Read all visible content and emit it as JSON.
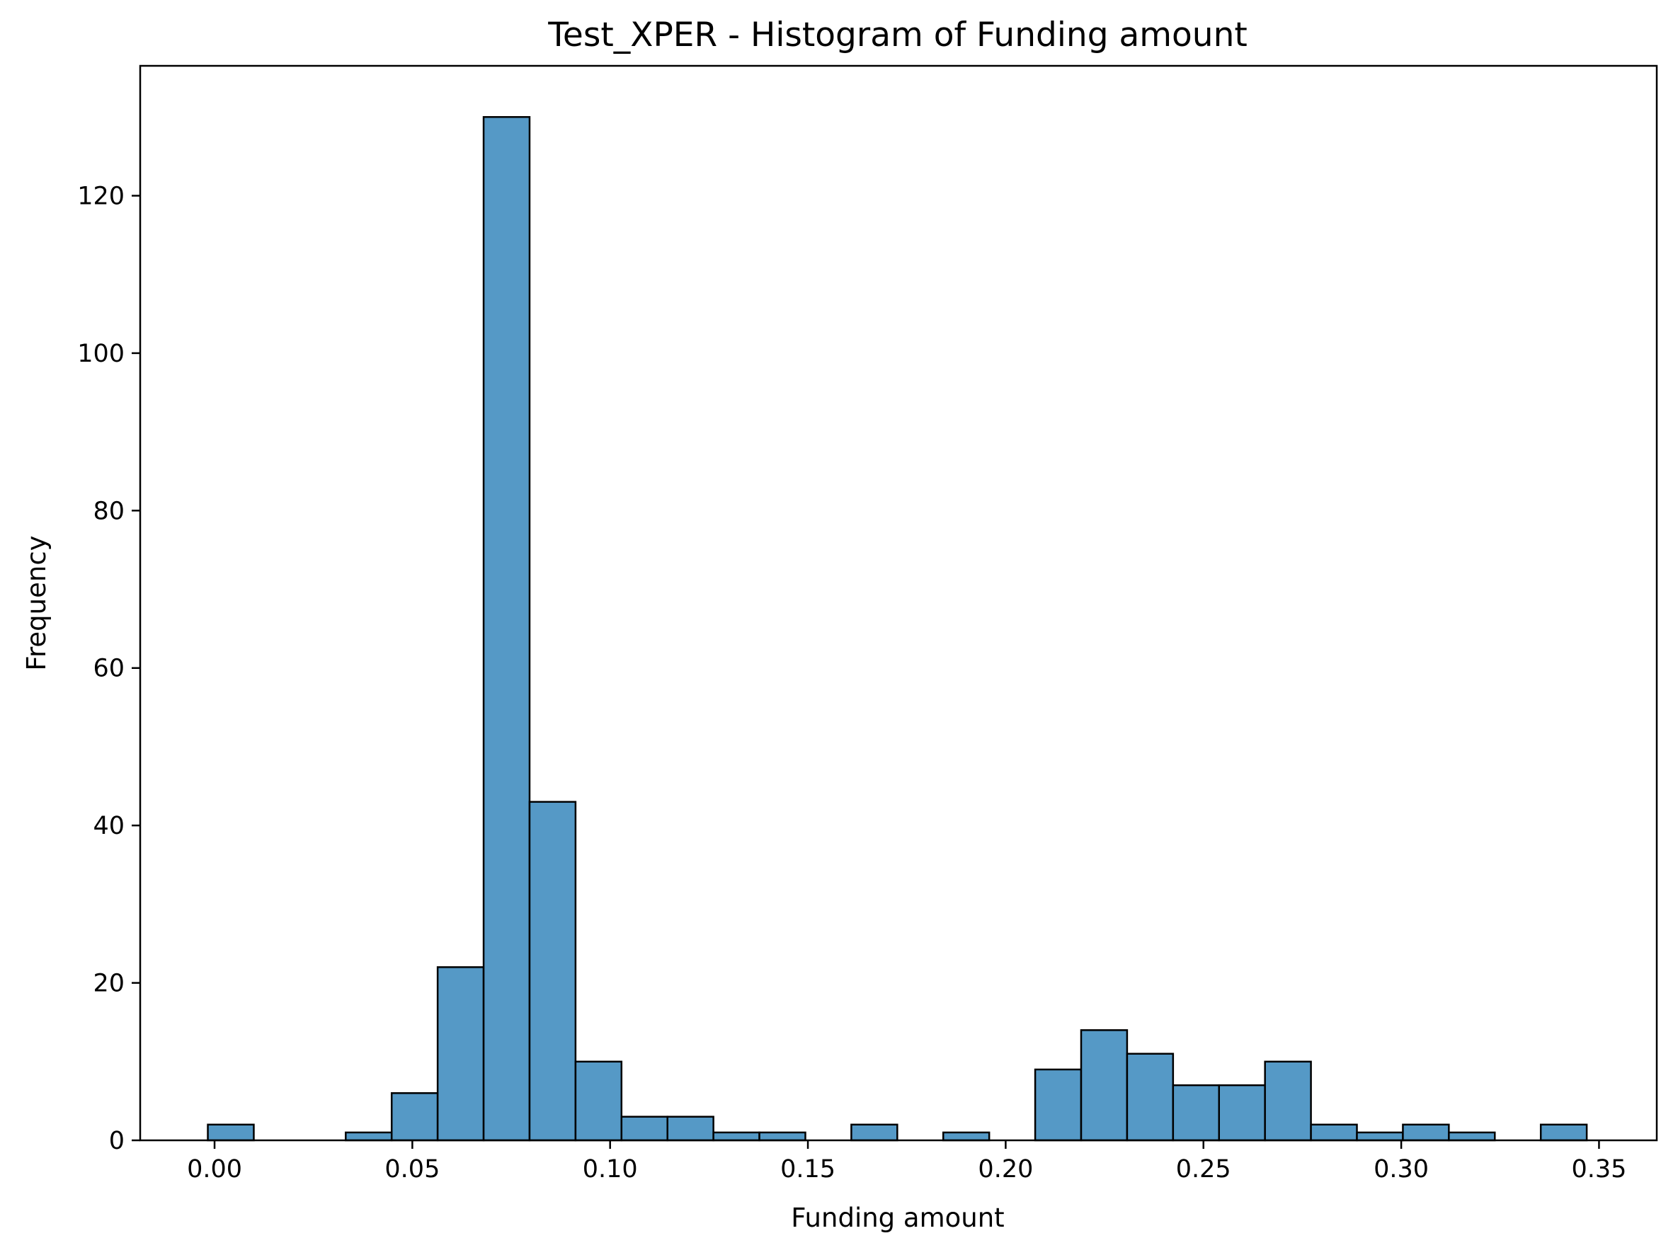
{
  "chart_data": {
    "type": "bar",
    "title": "Test_XPER - Histogram of Funding amount",
    "xlabel": "Funding amount",
    "ylabel": "Frequency",
    "xlim": [
      -0.0188,
      0.3646
    ],
    "ylim": [
      0,
      136.5
    ],
    "xticks": [
      "0.00",
      "0.05",
      "0.10",
      "0.15",
      "0.20",
      "0.25",
      "0.30",
      "0.35"
    ],
    "yticks": [
      "0",
      "20",
      "40",
      "60",
      "80",
      "100",
      "120"
    ],
    "bin_start": -0.0017,
    "bin_width": 0.01162,
    "counts": [
      2,
      0,
      0,
      1,
      6,
      22,
      130,
      43,
      10,
      3,
      3,
      1,
      1,
      0,
      2,
      0,
      1,
      0,
      9,
      14,
      11,
      7,
      7,
      10,
      2,
      1,
      2,
      1,
      0,
      2
    ],
    "grid": false,
    "colors": {
      "bar_fill": "#5599c6",
      "bar_edge": "#000000"
    }
  }
}
